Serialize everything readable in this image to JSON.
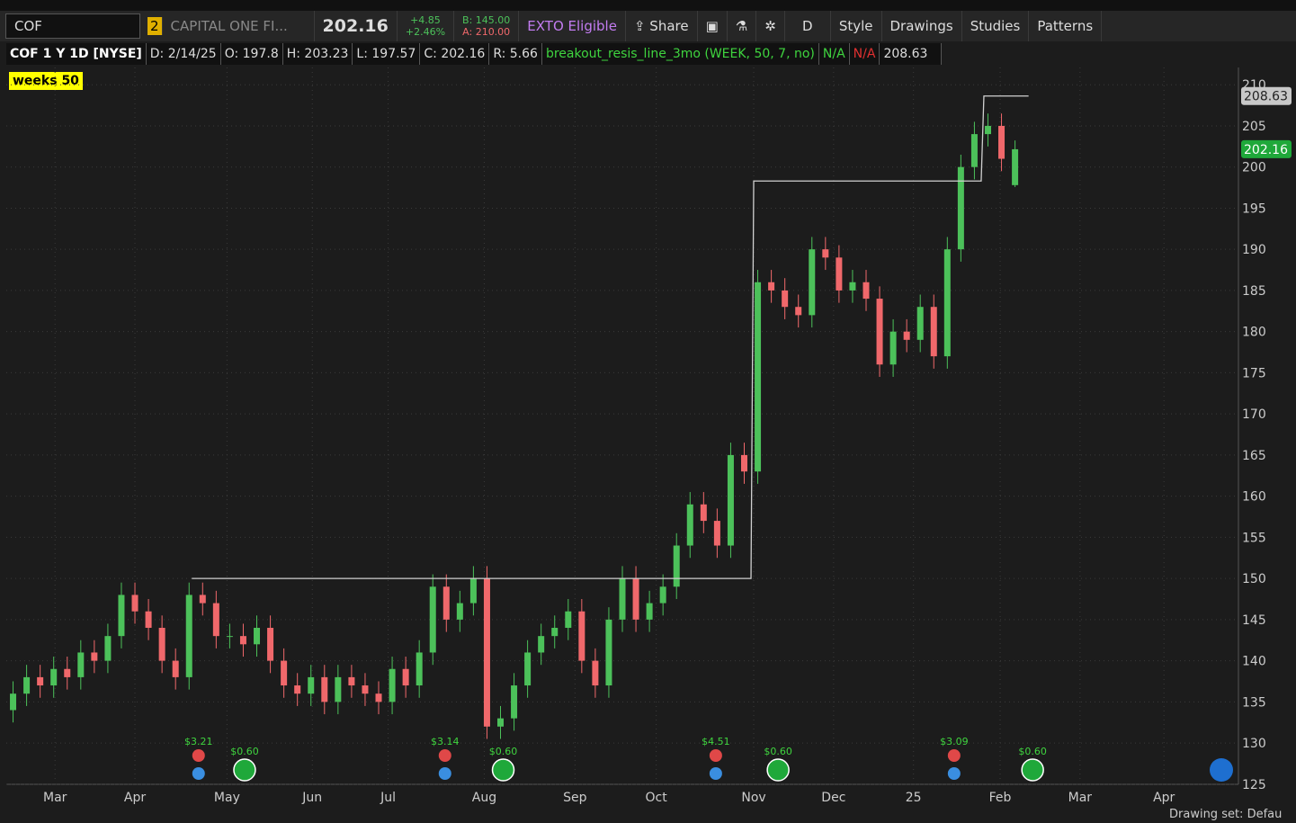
{
  "toolbar": {
    "symbol": "COF",
    "link": "2",
    "name": "CAPITAL ONE FI...",
    "last": "202.16",
    "change": "+4.85",
    "change_pct": "+2.46%",
    "bid": "B: 145.00",
    "ask": "A: 210.00",
    "exto": "EXTO Eligible",
    "share": "Share",
    "period": "D",
    "style": "Style",
    "drawings": "Drawings",
    "studies": "Studies",
    "patterns": "Patterns"
  },
  "info_bar": {
    "title": "COF 1 Y 1D [NYSE]",
    "date": "D: 2/14/25",
    "open": "O: 197.8",
    "high": "H: 203.23",
    "low": "L: 197.57",
    "close": "C: 202.16",
    "range": "R: 5.66",
    "study": "breakout_resis_line_3mo (WEEK, 50, 7, no)",
    "na1": "N/A",
    "na2": "N/A",
    "study_value": "208.63"
  },
  "study_tag": "weeks 50",
  "footer": {
    "drawing_set": "Drawing set: Defau"
  },
  "chart_data": {
    "type": "candlestick",
    "up_color": "#4cc15a",
    "down_color": "#f0686b",
    "categories": [
      null,
      null,
      null,
      null,
      null,
      null,
      null,
      null,
      null,
      null,
      null,
      null,
      null,
      null,
      null,
      null,
      null,
      null,
      null,
      null,
      null,
      null,
      null,
      null,
      null,
      null,
      null,
      null,
      null,
      null,
      null,
      null,
      null,
      null,
      null,
      null,
      null,
      null,
      null,
      null,
      null,
      null,
      null,
      null,
      null,
      null,
      null,
      null,
      null,
      null,
      null,
      null,
      null,
      null,
      null,
      null,
      null,
      null,
      null,
      null,
      null,
      null,
      null,
      null,
      null,
      null,
      null,
      null,
      null,
      null,
      null,
      null,
      null,
      null,
      null
    ],
    "open": [
      134,
      136,
      138,
      137,
      139,
      138,
      141,
      140,
      143,
      148,
      146,
      144,
      140,
      138,
      148,
      147,
      143,
      143,
      142,
      144,
      140,
      137,
      136,
      138,
      135,
      138,
      137,
      136,
      135,
      139,
      137,
      141,
      149,
      145,
      147,
      150,
      132,
      133,
      137,
      141,
      143,
      144,
      146,
      140,
      137,
      145,
      150,
      145,
      147,
      149,
      154,
      159,
      157,
      154,
      165,
      163,
      186,
      185,
      183,
      182,
      190,
      189,
      185,
      186,
      184,
      176,
      180,
      179,
      183,
      177,
      190,
      200,
      204,
      205,
      197.8
    ],
    "high": [
      137.5,
      139.5,
      139.5,
      140.5,
      140.5,
      142.5,
      142.5,
      144.5,
      149.5,
      149.5,
      147.5,
      145.5,
      141.5,
      149.5,
      149.5,
      148.5,
      144.5,
      144.5,
      145.5,
      145.5,
      141.5,
      138.5,
      139.5,
      139.5,
      139.5,
      139.5,
      138.5,
      137.5,
      140.5,
      140.5,
      142.5,
      150.5,
      150.5,
      148.5,
      151.5,
      151.5,
      134.5,
      138.5,
      142.5,
      144.5,
      145.5,
      147.5,
      147.5,
      141.5,
      146.5,
      151.5,
      151.5,
      148.5,
      150.5,
      155.5,
      160.5,
      160.5,
      158.5,
      166.5,
      166.5,
      187.5,
      187.5,
      186.5,
      184.5,
      191.5,
      191.5,
      190.5,
      187.5,
      187.5,
      185.5,
      181.5,
      181.5,
      184.5,
      184.5,
      191.5,
      201.5,
      205.5,
      206.5,
      206.5,
      203.23
    ],
    "low": [
      132.5,
      134.5,
      135.5,
      135.5,
      136.5,
      136.5,
      138.5,
      138.5,
      141.5,
      144.5,
      142.5,
      138.5,
      136.5,
      136.5,
      145.5,
      141.5,
      141.5,
      140.5,
      140.5,
      138.5,
      135.5,
      134.5,
      134.5,
      133.5,
      133.5,
      135.5,
      134.5,
      133.5,
      133.5,
      135.5,
      135.5,
      139.5,
      143.5,
      143.5,
      145.5,
      130.5,
      130.5,
      131.5,
      135.5,
      139.5,
      141.5,
      142.5,
      138.5,
      135.5,
      135.5,
      143.5,
      143.5,
      143.5,
      145.5,
      147.5,
      152.5,
      155.5,
      152.5,
      152.5,
      161.5,
      161.5,
      183.5,
      181.5,
      180.5,
      180.5,
      187.5,
      183.5,
      183.5,
      182.5,
      174.5,
      174.5,
      177.5,
      177.5,
      175.5,
      175.5,
      188.5,
      198.5,
      202.5,
      199.5,
      197.57
    ],
    "close": [
      136,
      138,
      137,
      139,
      138,
      141,
      140,
      143,
      148,
      146,
      144,
      140,
      138,
      148,
      147,
      143,
      143,
      142,
      144,
      140,
      137,
      136,
      138,
      135,
      138,
      137,
      136,
      135,
      139,
      137,
      141,
      149,
      145,
      147,
      150,
      132,
      133,
      137,
      141,
      143,
      144,
      146,
      140,
      137,
      145,
      150,
      145,
      147,
      149,
      154,
      159,
      157,
      154,
      165,
      163,
      186,
      185,
      183,
      182,
      190,
      189,
      185,
      186,
      184,
      176,
      180,
      179,
      183,
      177,
      190,
      200,
      204,
      205,
      201,
      202.16
    ],
    "xlim": [
      -0.5,
      90.5
    ],
    "xticks": [
      {
        "value": 3.1,
        "label": "Mar"
      },
      {
        "value": 9,
        "label": "Apr"
      },
      {
        "value": 15.8,
        "label": "May"
      },
      {
        "value": 22.1,
        "label": "Jun"
      },
      {
        "value": 27.7,
        "label": "Jul"
      },
      {
        "value": 34.8,
        "label": "Aug"
      },
      {
        "value": 41.5,
        "label": "Sep"
      },
      {
        "value": 47.5,
        "label": "Oct"
      },
      {
        "value": 54.7,
        "label": "Nov"
      },
      {
        "value": 60.6,
        "label": "Dec"
      },
      {
        "value": 66.5,
        "label": "25"
      },
      {
        "value": 72.9,
        "label": "Feb"
      },
      {
        "value": 78.8,
        "label": "Mar"
      },
      {
        "value": 85,
        "label": "Apr"
      }
    ],
    "ylim": [
      125.2,
      212.1
    ],
    "yticks": [
      125,
      130,
      135,
      140,
      145,
      150,
      155,
      160,
      165,
      170,
      175,
      180,
      185,
      190,
      195,
      200,
      205,
      210
    ],
    "grid": true,
    "study_line": {
      "color": "#d0d0d0",
      "segments": [
        {
          "x": [
            13.2,
            54.5
          ],
          "value": 150
        },
        {
          "x": [
            54.7,
            71.5
          ],
          "value": 198.3
        },
        {
          "x": [
            71.7,
            75
          ],
          "value": 208.63
        }
      ]
    },
    "price_tags": [
      {
        "value": 208.63,
        "color": "#c8c8c8"
      },
      {
        "value": 202.16,
        "color": "#1fa83a"
      }
    ],
    "earnings": [
      {
        "x": 13.7,
        "label": "$3.21"
      },
      {
        "x": 31.9,
        "label": "$3.14"
      },
      {
        "x": 51.9,
        "label": "$4.51"
      },
      {
        "x": 69.5,
        "label": "$3.09"
      }
    ],
    "dividends": [
      {
        "x": 17.1,
        "label": "$0.60"
      },
      {
        "x": 36.2,
        "label": "$0.60"
      },
      {
        "x": 56.5,
        "label": "$0.60"
      },
      {
        "x": 75.3,
        "label": "$0.60"
      }
    ]
  }
}
